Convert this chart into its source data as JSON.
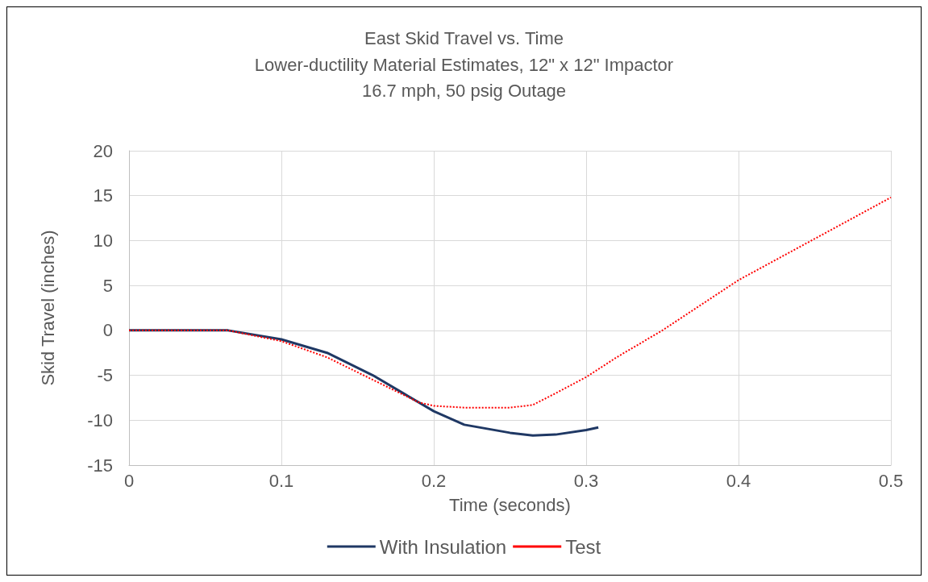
{
  "chart_data": {
    "type": "line",
    "title": "East Skid Travel vs. Time",
    "subtitle": "Lower-ductility Material Estimates, 12\" x 12\" Impactor\n16.7 mph, 50 psig Outage",
    "xlabel": "Time (seconds)",
    "ylabel": "Skid Travel (inches)",
    "xlim": [
      0,
      0.5
    ],
    "xticks": [
      0,
      0.1,
      0.2,
      0.3,
      0.4,
      0.5
    ],
    "ylim": [
      -15,
      20
    ],
    "yticks": [
      -15,
      -10,
      -5,
      0,
      5,
      10,
      15,
      20
    ],
    "grid": true,
    "legend": "bottom",
    "marker": "none",
    "series": [
      {
        "name": "With Insulation",
        "color": "#1f3864",
        "line_style": "solid",
        "x": [
          0,
          0.065,
          0.1,
          0.13,
          0.16,
          0.18,
          0.2,
          0.22,
          0.25,
          0.265,
          0.28,
          0.3,
          0.308
        ],
        "values": [
          0,
          0,
          -1,
          -2.5,
          -5,
          -7,
          -9,
          -10.5,
          -11.4,
          -11.7,
          -11.6,
          -11.1,
          -10.8
        ]
      },
      {
        "name": "Test",
        "color": "#ff0000",
        "line_style": "dotted",
        "x": [
          0,
          0.065,
          0.1,
          0.13,
          0.16,
          0.19,
          0.2,
          0.22,
          0.25,
          0.265,
          0.28,
          0.3,
          0.32,
          0.35,
          0.4,
          0.45,
          0.5
        ],
        "values": [
          0,
          0,
          -1.2,
          -3,
          -5.5,
          -8,
          -8.4,
          -8.6,
          -8.6,
          -8.3,
          -7,
          -5.2,
          -3,
          0,
          5.6,
          10.2,
          14.8
        ]
      }
    ]
  }
}
